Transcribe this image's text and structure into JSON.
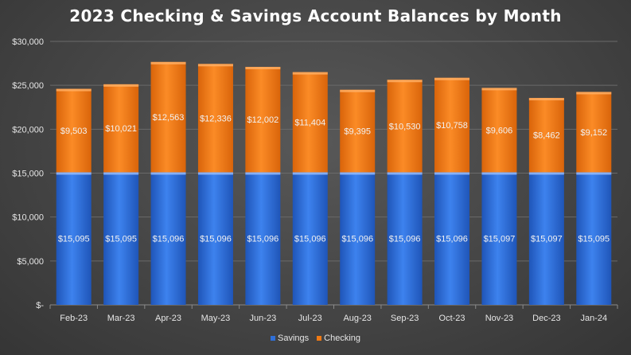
{
  "chart_data": {
    "type": "bar",
    "stacked": true,
    "title": "2023 Checking & Savings Account Balances by Month",
    "categories": [
      "Feb-23",
      "Mar-23",
      "Apr-23",
      "May-23",
      "Jun-23",
      "Jul-23",
      "Aug-23",
      "Sep-23",
      "Oct-23",
      "Nov-23",
      "Dec-23",
      "Jan-24"
    ],
    "series": [
      {
        "name": "Savings",
        "color": "#2f6fd8",
        "values": [
          15095,
          15095,
          15096,
          15096,
          15096,
          15096,
          15096,
          15096,
          15096,
          15097,
          15097,
          15095
        ],
        "labels": [
          "$15,095",
          "$15,095",
          "$15,096",
          "$15,096",
          "$15,096",
          "$15,096",
          "$15,096",
          "$15,096",
          "$15,096",
          "$15,097",
          "$15,097",
          "$15,095"
        ]
      },
      {
        "name": "Checking",
        "color": "#f07a14",
        "values": [
          9503,
          10021,
          12563,
          12336,
          12002,
          11404,
          9395,
          10530,
          10758,
          9606,
          8462,
          9152
        ],
        "labels": [
          "$9,503",
          "$10,021",
          "$12,563",
          "$12,336",
          "$12,002",
          "$11,404",
          "$9,395",
          "$10,530",
          "$10,758",
          "$9,606",
          "$8,462",
          "$9,152"
        ]
      }
    ],
    "ylim": [
      0,
      30000
    ],
    "yticks": [
      0,
      5000,
      10000,
      15000,
      20000,
      25000,
      30000
    ],
    "ytick_labels": [
      "$-",
      "$5,000",
      "$10,000",
      "$15,000",
      "$20,000",
      "$25,000",
      "$30,000"
    ],
    "grid": true,
    "legend_position": "bottom"
  }
}
